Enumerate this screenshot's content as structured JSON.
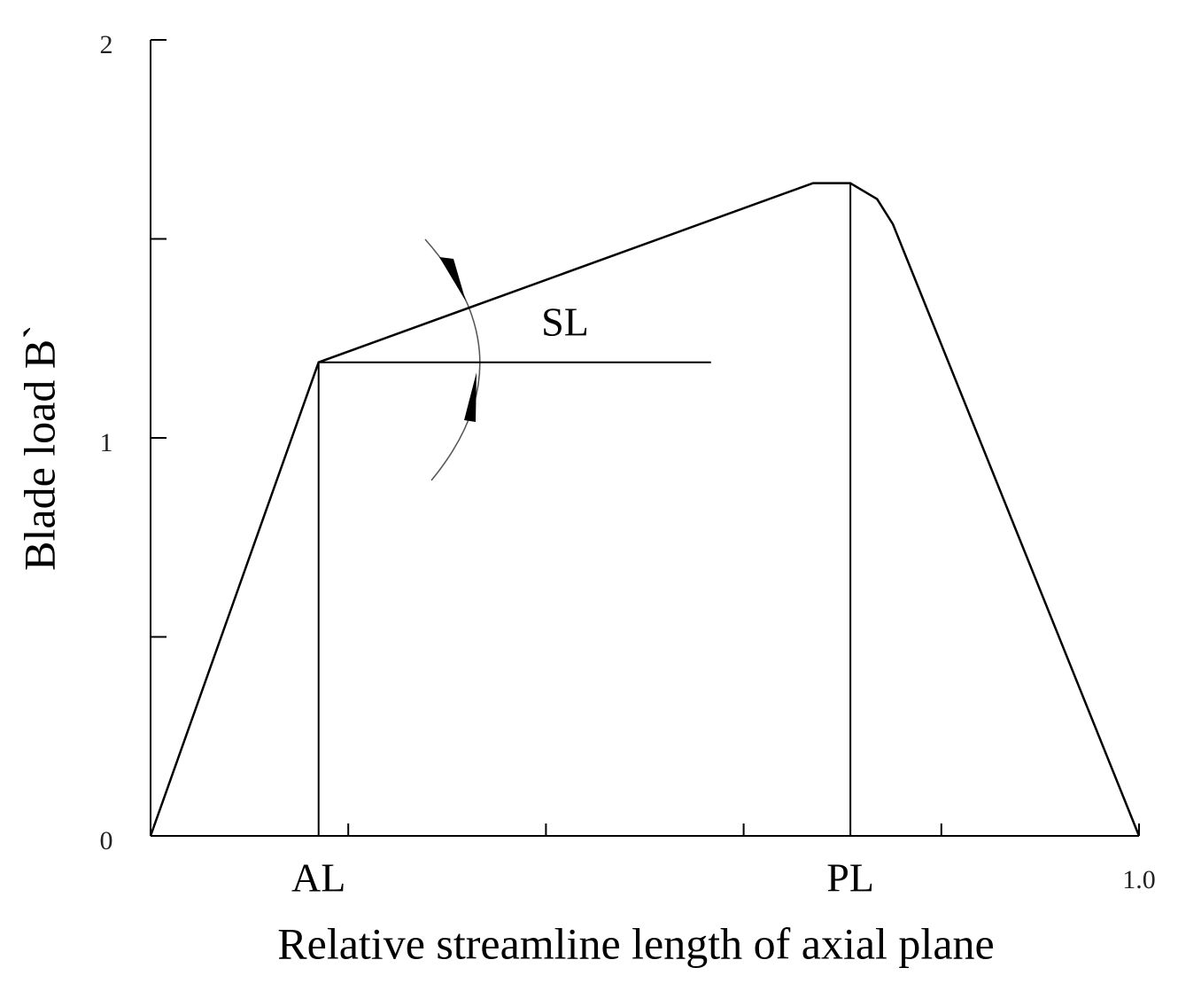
{
  "chart_data": {
    "type": "line",
    "x_label": "Relative streamline length of axial plane",
    "y_label": "Blade load B`",
    "x": [
      0,
      0.17,
      0.67,
      0.708,
      0.735,
      0.751,
      1.0
    ],
    "values": [
      0,
      1.19,
      1.64,
      1.64,
      1.6,
      1.537,
      0
    ],
    "color": "#000000",
    "xlim": [
      0,
      1.0
    ],
    "ylim": [
      0,
      2
    ],
    "xticks": [
      {
        "value": 0.2,
        "label": null
      },
      {
        "value": 0.4,
        "label": null
      },
      {
        "value": 0.6,
        "label": null
      },
      {
        "value": 0.8,
        "label": null
      },
      {
        "value": 1.0,
        "label": "1.0"
      }
    ],
    "yticks": [
      0,
      {
        "value": 0.5,
        "label": null
      },
      1,
      {
        "value": 1.5,
        "label": null
      },
      2
    ],
    "markers": [
      {
        "label": "AL",
        "x": 0.17,
        "y": 1.19
      },
      {
        "label": "PL",
        "x": 0.708,
        "y": 1.64
      }
    ],
    "slope": {
      "label": "SL",
      "x": [
        0.17,
        0.567
      ],
      "y": 1.19
    }
  }
}
